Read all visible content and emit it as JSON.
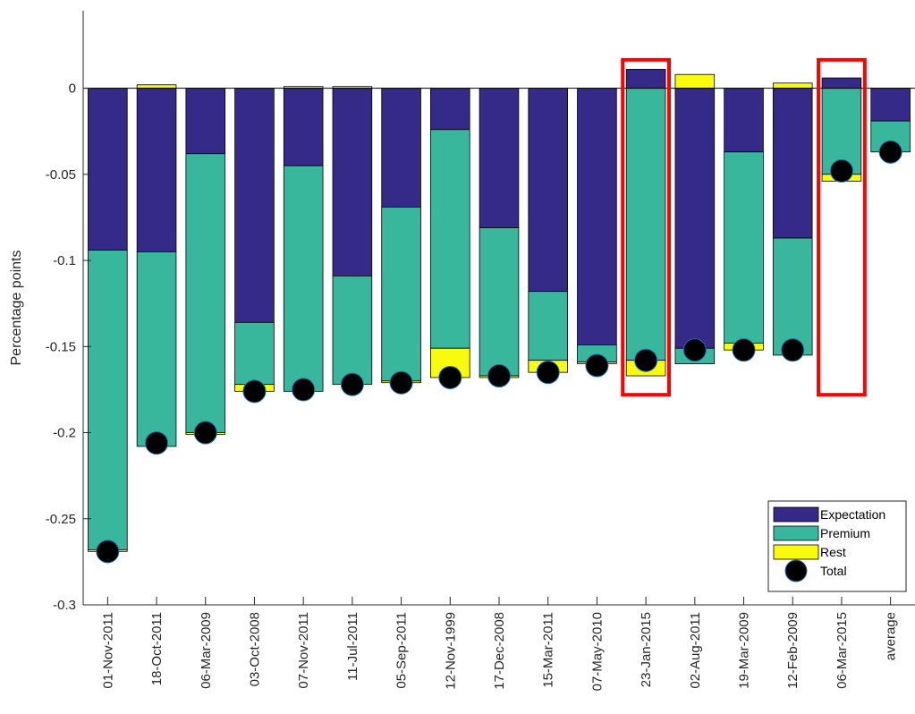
{
  "chart_data": {
    "type": "bar",
    "stacked": true,
    "ylabel": "Percentage points",
    "xlabel": "",
    "title": "",
    "ylim": [
      -0.3,
      0.045
    ],
    "yticks": [
      -0.3,
      -0.25,
      -0.2,
      -0.15,
      -0.1,
      -0.05,
      0
    ],
    "ytick_labels": [
      "-0.3",
      "-0.25",
      "-0.2",
      "-0.15",
      "-0.1",
      "-0.05",
      "0"
    ],
    "grid": false,
    "legend_position": "bottom-right",
    "categories": [
      "01-Nov-2011",
      "18-Oct-2011",
      "06-Mar-2009",
      "03-Oct-2008",
      "07-Nov-2011",
      "11-Jul-2011",
      "05-Sep-2011",
      "12-Nov-1999",
      "17-Dec-2008",
      "15-Mar-2011",
      "07-May-2010",
      "23-Jan-2015",
      "02-Aug-2011",
      "19-Mar-2009",
      "12-Feb-2009",
      "06-Mar-2015",
      "average"
    ],
    "series": [
      {
        "name": "Expectation",
        "color": "#352a87",
        "values": [
          -0.094,
          -0.095,
          -0.038,
          -0.136,
          -0.045,
          -0.109,
          -0.069,
          -0.024,
          -0.081,
          -0.118,
          -0.149,
          0.011,
          -0.151,
          -0.037,
          -0.087,
          0.006,
          -0.019
        ]
      },
      {
        "name": "Premium",
        "color": "#38b79c",
        "values": [
          -0.174,
          -0.113,
          -0.162,
          -0.036,
          -0.131,
          -0.063,
          -0.101,
          -0.127,
          -0.086,
          -0.04,
          -0.01,
          -0.158,
          -0.009,
          -0.111,
          -0.068,
          -0.05,
          -0.018
        ]
      },
      {
        "name": "Rest",
        "color": "#f9fb0e",
        "values": [
          -0.001,
          0.002,
          -0.001,
          -0.004,
          0.001,
          0.001,
          -0.001,
          -0.017,
          -0.001,
          -0.007,
          -0.001,
          -0.009,
          0.008,
          -0.004,
          0.003,
          -0.004,
          0.0
        ]
      },
      {
        "name": "Total",
        "color": "#000000",
        "marker": "circle",
        "values": [
          -0.269,
          -0.206,
          -0.2,
          -0.176,
          -0.175,
          -0.172,
          -0.171,
          -0.168,
          -0.167,
          -0.165,
          -0.161,
          -0.158,
          -0.152,
          -0.152,
          -0.152,
          -0.048,
          -0.037
        ]
      }
    ],
    "highlighted_categories": [
      "23-Jan-2015",
      "06-Mar-2015"
    ],
    "highlight_color": "#ff0000"
  }
}
